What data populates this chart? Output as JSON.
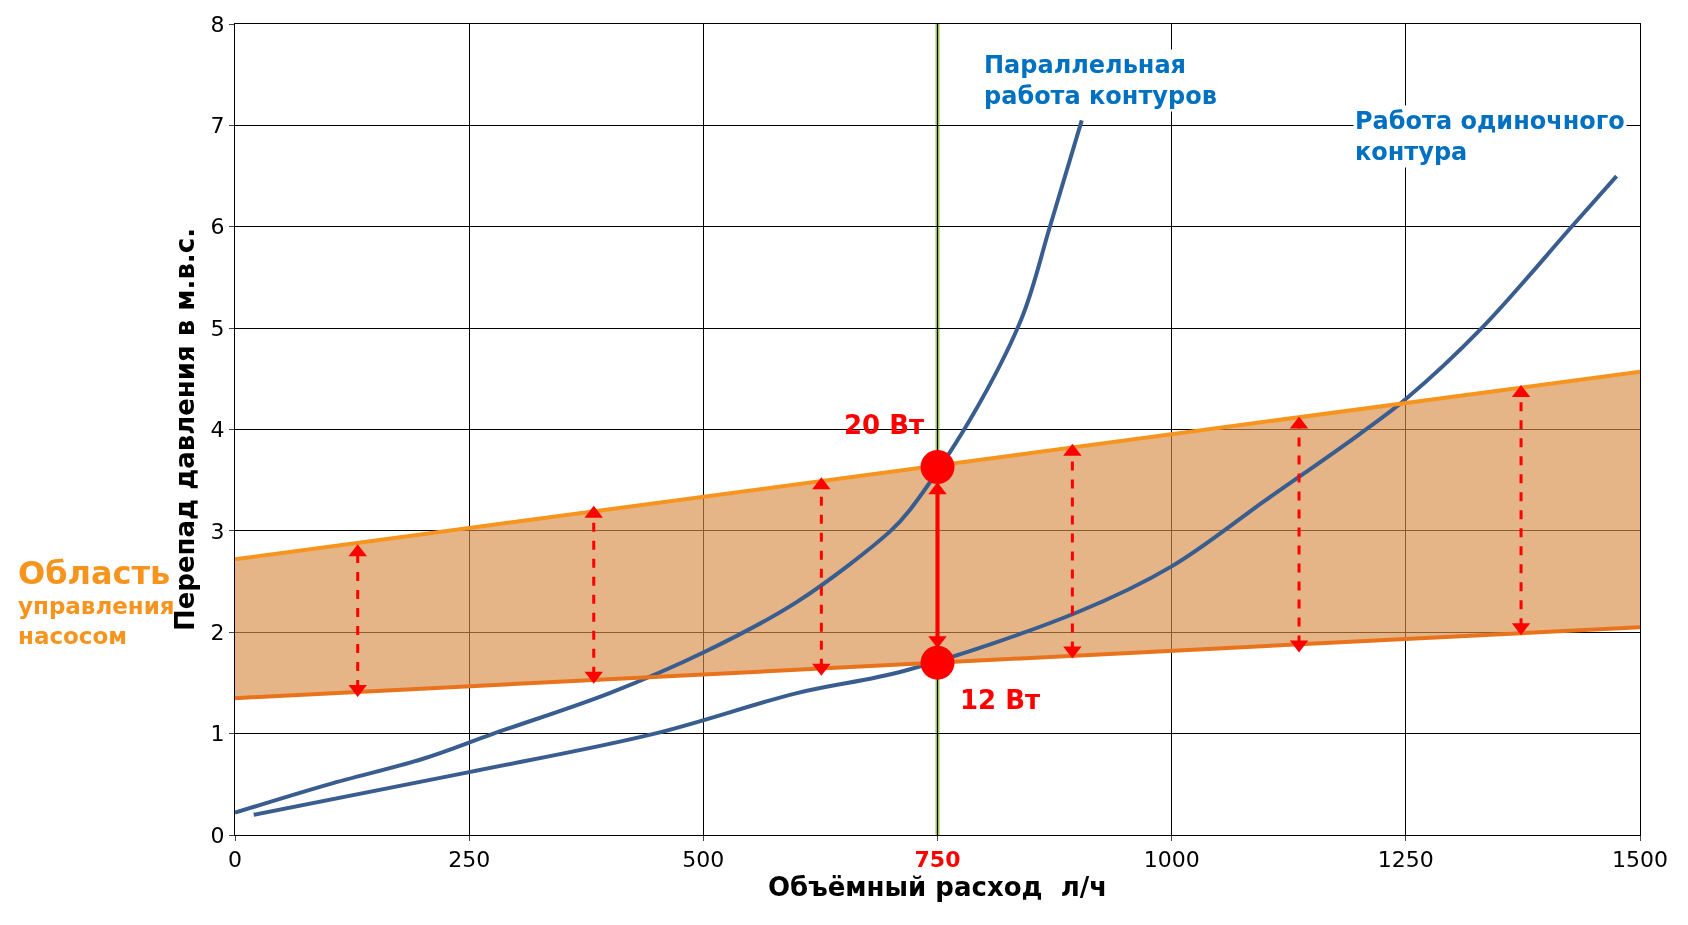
{
  "chart_data": {
    "type": "line",
    "xlabel": "Объёмный расход  л/ч",
    "ylabel": "Перепад давления в м.в.с.",
    "xlim": [
      0,
      1500
    ],
    "xticks": [
      0,
      250,
      500,
      750,
      1000,
      1250,
      1500
    ],
    "ylim": [
      0,
      8
    ],
    "yticks": [
      0,
      1,
      2,
      3,
      4,
      5,
      6,
      7,
      8
    ],
    "grid": true,
    "series": [
      {
        "name": "Параллельная\nработа контуров",
        "color": "#3a5d8f",
        "x": [
          0,
          100,
          200,
          276,
          400,
          500,
          600,
          700,
          720,
          785,
          840,
          870,
          904
        ],
        "values": [
          0.22,
          0.5,
          0.75,
          1,
          1.4,
          1.8,
          2.3,
          3.0,
          3.2,
          4.1,
          5.1,
          6.0,
          7.05
        ]
      },
      {
        "name": "Работа одиночного\nконтура",
        "color": "#3a5d8f",
        "x": [
          20,
          250,
          448,
          600,
          715,
          900,
          1000,
          1100,
          1200,
          1250,
          1331,
          1427,
          1475
        ],
        "values": [
          0.2,
          0.62,
          1,
          1.4,
          1.62,
          2.2,
          2.65,
          3.3,
          3.95,
          4.3,
          5,
          6,
          6.5
        ]
      },
      {
        "color": "#f7941d",
        "x": [
          0,
          1500
        ],
        "values": [
          2.72,
          4.57
        ]
      },
      {
        "color": "#e8731c",
        "x": [
          0,
          1500
        ],
        "values": [
          1.35,
          2.05
        ],
        "lower": [
          1.35,
          2.05
        ],
        "upper": [
          2.72,
          4.57
        ]
      },
      {
        "color": "#ff0000",
        "x": [
          131,
          131
        ],
        "values": [
          1.44,
          2.79
        ],
        "line_style": "dashed",
        "marker": "triangle"
      },
      {
        "color": "#ff0000",
        "x": [
          383,
          383
        ],
        "values": [
          1.57,
          3.17
        ],
        "line_style": "dashed",
        "marker": "triangle"
      },
      {
        "color": "#ff0000",
        "x": [
          626,
          626
        ],
        "values": [
          1.65,
          3.45
        ],
        "line_style": "dashed",
        "marker": "triangle"
      },
      {
        "color": "#ff0000",
        "x": [
          894,
          894
        ],
        "values": [
          1.82,
          3.78
        ],
        "line_style": "dashed",
        "marker": "triangle"
      },
      {
        "color": "#ff0000",
        "x": [
          1136,
          1136
        ],
        "values": [
          1.88,
          4.05
        ],
        "line_style": "dashed",
        "marker": "triangle"
      },
      {
        "color": "#ff0000",
        "x": [
          1373,
          1373
        ],
        "values": [
          2.05,
          4.36
        ],
        "line_style": "dashed",
        "marker": "triangle"
      },
      {
        "color": "#ff0000",
        "x": [
          750,
          750
        ],
        "values": [
          1.92,
          3.4
        ],
        "line_style": "solid",
        "marker": "triangle"
      },
      {
        "type": "scatter",
        "color": "#ff0000",
        "x": [
          750,
          750
        ],
        "values": [
          3.63,
          1.7
        ],
        "marker": "circle"
      }
    ],
    "ref_lines": [
      {
        "axis": "x",
        "value": 750,
        "color": "#9bbb59"
      }
    ],
    "annotations": [
      {
        "text": "20 Вт",
        "x": 750,
        "y": 3.63
      },
      {
        "text": "12 Вт",
        "x": 750,
        "y": 1.7
      },
      "Область\nуправления\nнасосом"
    ]
  }
}
